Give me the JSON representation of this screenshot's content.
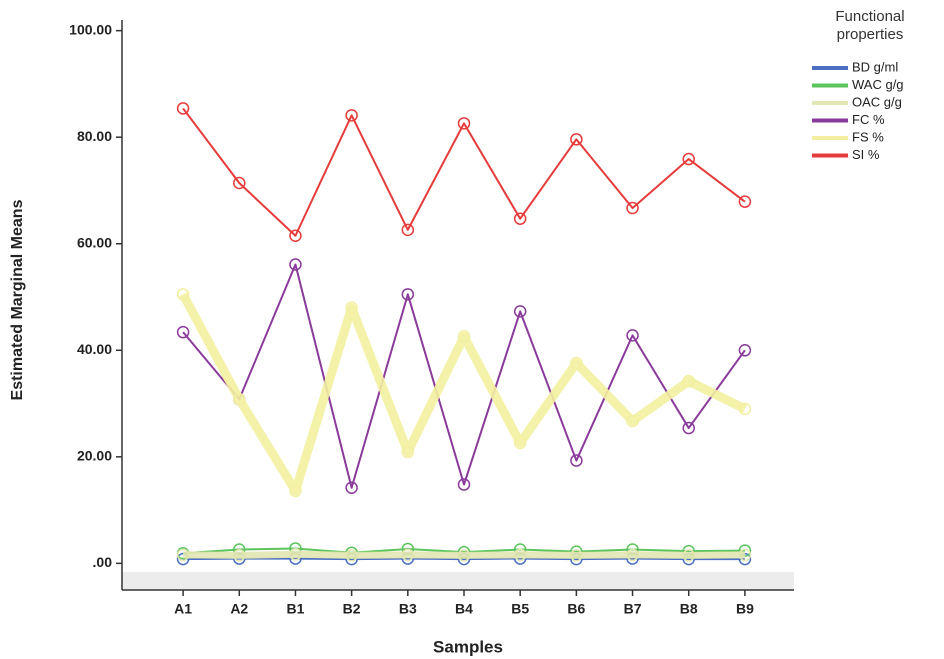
{
  "chart_data": {
    "type": "line",
    "x_label": "Samples",
    "y_label": "Estimated Marginal Means",
    "legend_title": "Functional properties",
    "legend_position": "upper right",
    "categories": [
      "A1",
      "A2",
      "B1",
      "B2",
      "B3",
      "B4",
      "B5",
      "B6",
      "B7",
      "B8",
      "B9"
    ],
    "ylim": [
      -5,
      102
    ],
    "yticks": [
      {
        "value": 0,
        "label": ".00"
      },
      {
        "value": 20,
        "label": "20.00"
      },
      {
        "value": 40,
        "label": "40.00"
      },
      {
        "value": 60,
        "label": "60.00"
      },
      {
        "value": 80,
        "label": "80.00"
      },
      {
        "value": 100,
        "label": "100.00"
      }
    ],
    "series": [
      {
        "name": "BD g/ml",
        "color": "#4a6fc4",
        "values": [
          0.8,
          0.9,
          0.9,
          0.8,
          0.9,
          0.8,
          0.9,
          0.8,
          0.9,
          0.8,
          0.8
        ]
      },
      {
        "name": "WAC g/g",
        "color": "#5cc45c",
        "values": [
          1.9,
          2.6,
          2.8,
          2.0,
          2.7,
          2.1,
          2.6,
          2.2,
          2.6,
          2.3,
          2.4
        ]
      },
      {
        "name": "OAC g/g",
        "color": "#e2e6b0",
        "values": [
          1.6,
          1.5,
          1.7,
          1.5,
          1.6,
          1.5,
          1.6,
          1.5,
          1.6,
          1.5,
          1.6
        ]
      },
      {
        "name": "FC %",
        "color": "#8a3a9a",
        "values": [
          43.4,
          30.8,
          56.1,
          14.2,
          50.5,
          14.8,
          47.3,
          19.3,
          42.8,
          25.4,
          40.0
        ]
      },
      {
        "name": "FS %",
        "color": "#f3efa0",
        "values": [
          50.5,
          30.8,
          13.6,
          48.0,
          20.9,
          42.6,
          22.6,
          37.6,
          26.7,
          34.2,
          29.0
        ]
      },
      {
        "name": "SI %",
        "color": "#e63b3b",
        "values": [
          85.4,
          71.4,
          61.5,
          84.1,
          62.6,
          82.6,
          64.7,
          79.6,
          66.7,
          75.9,
          67.9
        ]
      }
    ]
  }
}
